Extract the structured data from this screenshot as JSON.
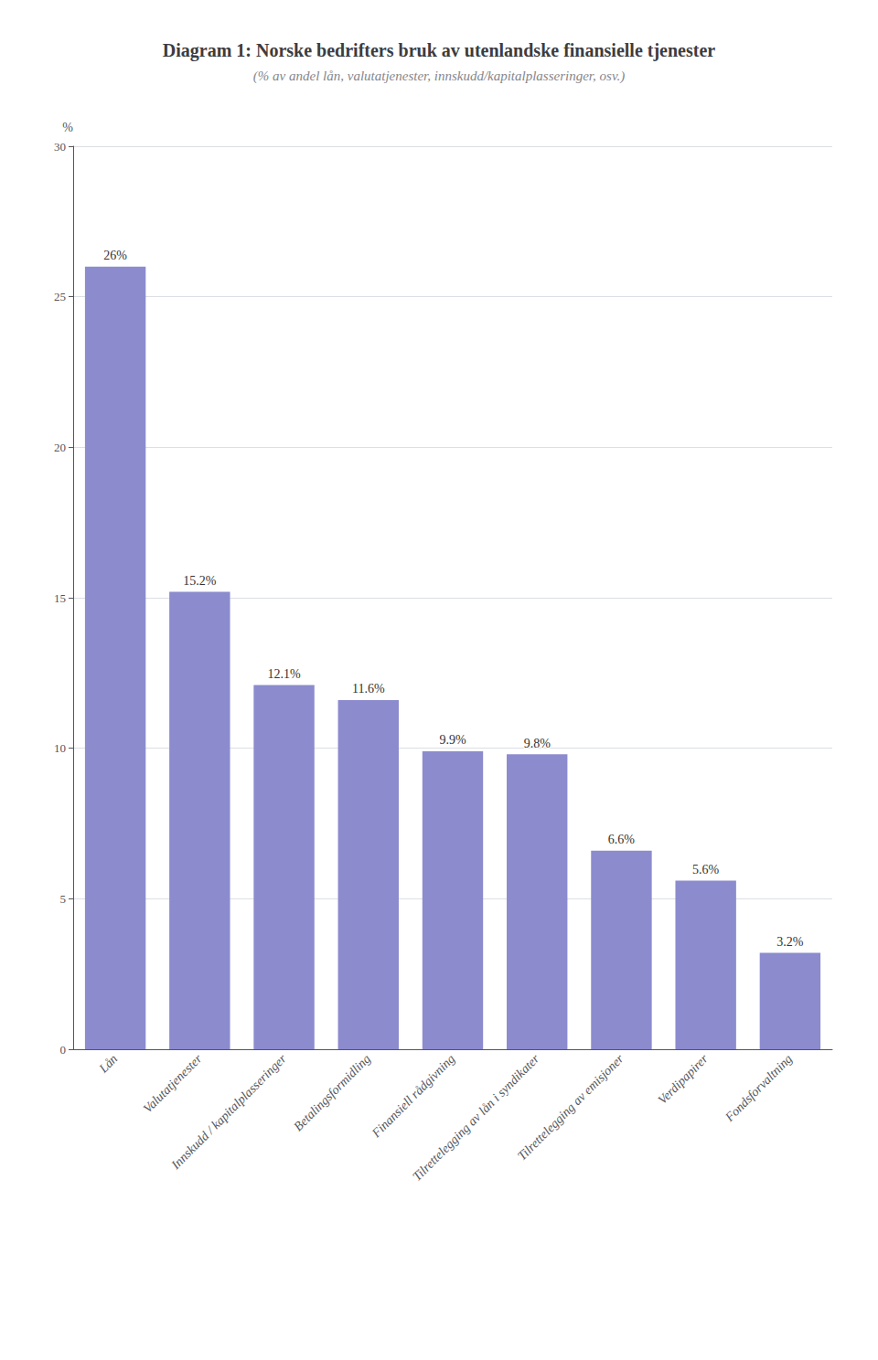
{
  "chart_data": {
    "type": "bar",
    "title": "Diagram 1: Norske bedrifters bruk av utenlandske finansielle tjenester",
    "subtitle": "(% av andel lån, valutatjenester, innskudd/kapitalplasseringer, osv.)",
    "ylabel": "%",
    "categories": [
      "Lån",
      "Valutatjenester",
      "Innskudd / kapitalplasseringer",
      "Betalingsformidling",
      "Finansiell rådgivning",
      "Tilrettelegging av lån i syndikater",
      "Tilrettelegging av emisjoner",
      "Verdipapirer",
      "Fondsforvaltning"
    ],
    "values": [
      26.0,
      15.2,
      12.1,
      11.6,
      9.9,
      9.8,
      6.6,
      5.6,
      3.2
    ],
    "value_labels": [
      "26%",
      "15.2%",
      "12.1%",
      "11.6%",
      "9.9%",
      "9.8%",
      "6.6%",
      "5.6%",
      "3.2%"
    ],
    "data_labels": true,
    "color": "#8b8bce",
    "ylim": [
      0,
      30
    ],
    "yticks": [
      0,
      5,
      10,
      15,
      20,
      25,
      30
    ],
    "grid": true
  }
}
